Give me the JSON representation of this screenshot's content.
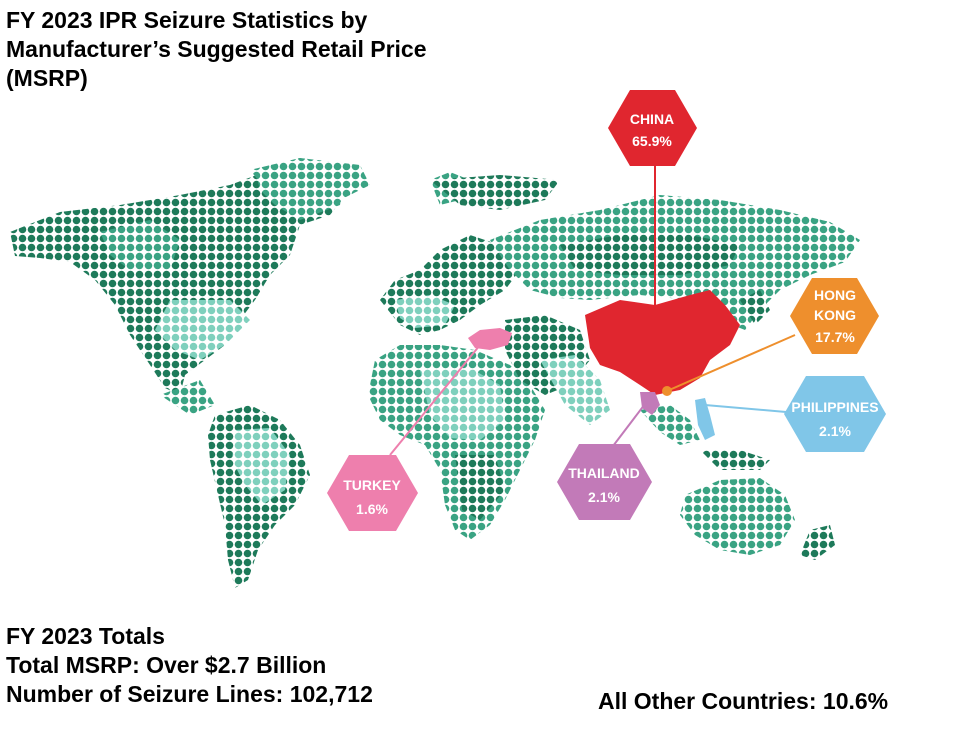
{
  "title": {
    "line1": "FY 2023 IPR Seizure Statistics by",
    "line2": "Manufacturer’s Suggested Retail Price",
    "line3": "(MSRP)"
  },
  "colors": {
    "land_dark": "#1e7a5a",
    "land_mid": "#2f9a7a",
    "land_light": "#7fd0bd",
    "china": "#e0262f",
    "hong_kong": "#ee8f2d",
    "philippines": "#80c6e8",
    "thailand": "#c27ab8",
    "turkey": "#ee7fad"
  },
  "countries": [
    {
      "name": "CHINA",
      "value": "65.9%",
      "percent": 65.9
    },
    {
      "name_line1": "HONG",
      "name_line2": "KONG",
      "value": "17.7%",
      "percent": 17.7
    },
    {
      "name": "PHILIPPINES",
      "value": "2.1%",
      "percent": 2.1
    },
    {
      "name": "THAILAND",
      "value": "2.1%",
      "percent": 2.1
    },
    {
      "name": "TURKEY",
      "value": "1.6%",
      "percent": 1.6
    }
  ],
  "totals": {
    "heading": "FY 2023 Totals",
    "msrp": "Total MSRP: Over $2.7 Billion",
    "lines": "Number of Seizure Lines: 102,712"
  },
  "other_countries": "All Other Countries: 10.6%"
}
